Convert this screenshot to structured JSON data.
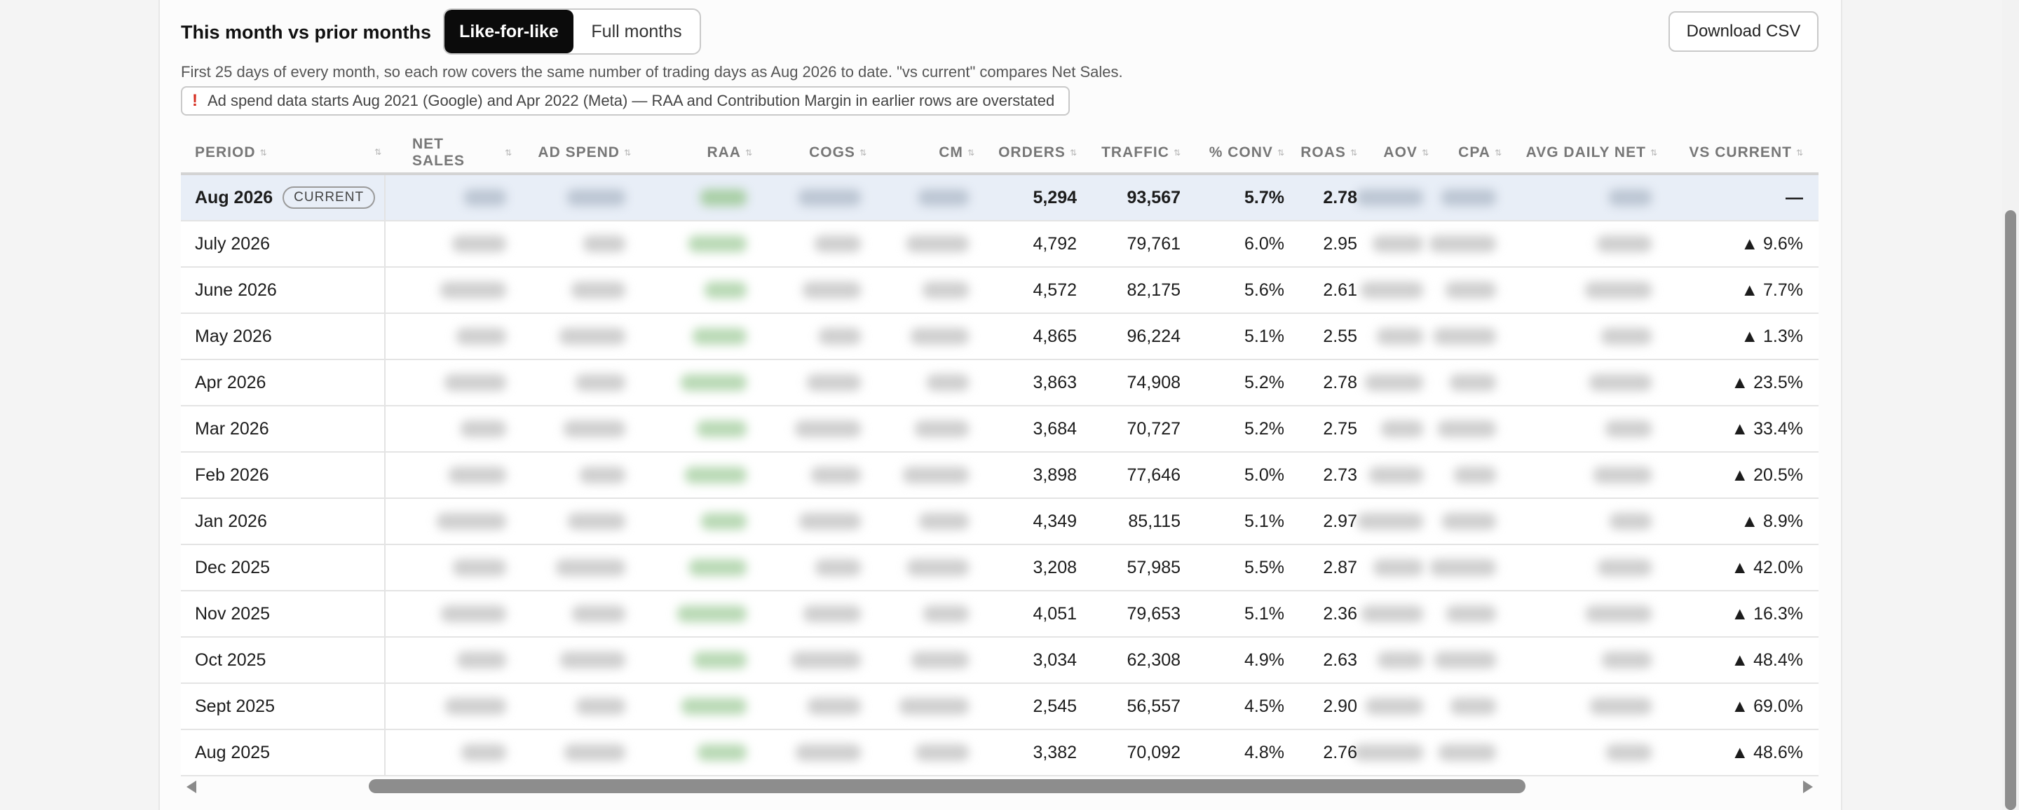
{
  "header": {
    "title": "This month vs prior months",
    "toggle": {
      "active": "Like-for-like",
      "inactive": "Full months"
    },
    "download_label": "Download CSV"
  },
  "note": "First 25 days of every month, so each row covers the same number of trading days as Aug 2026 to date. \"vs current\" compares Net Sales.",
  "warning": {
    "icon": "!",
    "text": "Ad spend data starts Aug 2021 (Google) and Apr 2022 (Meta) — RAA and Contribution Margin in earlier rows are overstated"
  },
  "table": {
    "columns": [
      {
        "key": "period",
        "label": "Period"
      },
      {
        "key": "net_sales",
        "label": "Net Sales"
      },
      {
        "key": "ad_spend",
        "label": "Ad Spend"
      },
      {
        "key": "raa",
        "label": "RAA"
      },
      {
        "key": "cogs",
        "label": "COGS"
      },
      {
        "key": "cm",
        "label": "CM"
      },
      {
        "key": "orders",
        "label": "Orders"
      },
      {
        "key": "traffic",
        "label": "Traffic"
      },
      {
        "key": "conv",
        "label": "% Conv"
      },
      {
        "key": "roas",
        "label": "ROAS"
      },
      {
        "key": "aov",
        "label": "AOV"
      },
      {
        "key": "cpa",
        "label": "CPA"
      },
      {
        "key": "avg_daily_net",
        "label": "Avg Daily Net"
      },
      {
        "key": "vs_current",
        "label": "vs Current"
      }
    ],
    "current_badge": "CURRENT",
    "rows": [
      {
        "period": "Aug 2026",
        "current": true,
        "orders": "5,294",
        "traffic": "93,567",
        "conv": "5.7%",
        "roas": "2.78",
        "vs_current": "—"
      },
      {
        "period": "July 2026",
        "orders": "4,792",
        "traffic": "79,761",
        "conv": "6.0%",
        "roas": "2.95",
        "vs_current": "▲ 9.6%"
      },
      {
        "period": "June 2026",
        "orders": "4,572",
        "traffic": "82,175",
        "conv": "5.6%",
        "roas": "2.61",
        "vs_current": "▲ 7.7%"
      },
      {
        "period": "May 2026",
        "orders": "4,865",
        "traffic": "96,224",
        "conv": "5.1%",
        "roas": "2.55",
        "vs_current": "▲ 1.3%"
      },
      {
        "period": "Apr 2026",
        "orders": "3,863",
        "traffic": "74,908",
        "conv": "5.2%",
        "roas": "2.78",
        "vs_current": "▲ 23.5%"
      },
      {
        "period": "Mar 2026",
        "orders": "3,684",
        "traffic": "70,727",
        "conv": "5.2%",
        "roas": "2.75",
        "vs_current": "▲ 33.4%"
      },
      {
        "period": "Feb 2026",
        "orders": "3,898",
        "traffic": "77,646",
        "conv": "5.0%",
        "roas": "2.73",
        "vs_current": "▲ 20.5%"
      },
      {
        "period": "Jan 2026",
        "orders": "4,349",
        "traffic": "85,115",
        "conv": "5.1%",
        "roas": "2.97",
        "vs_current": "▲ 8.9%"
      },
      {
        "period": "Dec 2025",
        "orders": "3,208",
        "traffic": "57,985",
        "conv": "5.5%",
        "roas": "2.87",
        "vs_current": "▲ 42.0%"
      },
      {
        "period": "Nov 2025",
        "orders": "4,051",
        "traffic": "79,653",
        "conv": "5.1%",
        "roas": "2.36",
        "vs_current": "▲ 16.3%"
      },
      {
        "period": "Oct 2025",
        "orders": "3,034",
        "traffic": "62,308",
        "conv": "4.9%",
        "roas": "2.63",
        "vs_current": "▲ 48.4%"
      },
      {
        "period": "Sept 2025",
        "orders": "2,545",
        "traffic": "56,557",
        "conv": "4.5%",
        "roas": "2.90",
        "vs_current": "▲ 69.0%"
      },
      {
        "period": "Aug 2025",
        "orders": "3,382",
        "traffic": "70,092",
        "conv": "4.8%",
        "roas": "2.76",
        "vs_current": "▲ 48.6%"
      }
    ]
  },
  "colors": {
    "accent_dark": "#0b0b0b",
    "current_row": "#e8eef7",
    "warning": "#d62d20"
  },
  "scroll": {
    "horizontal_position": 0.38
  }
}
